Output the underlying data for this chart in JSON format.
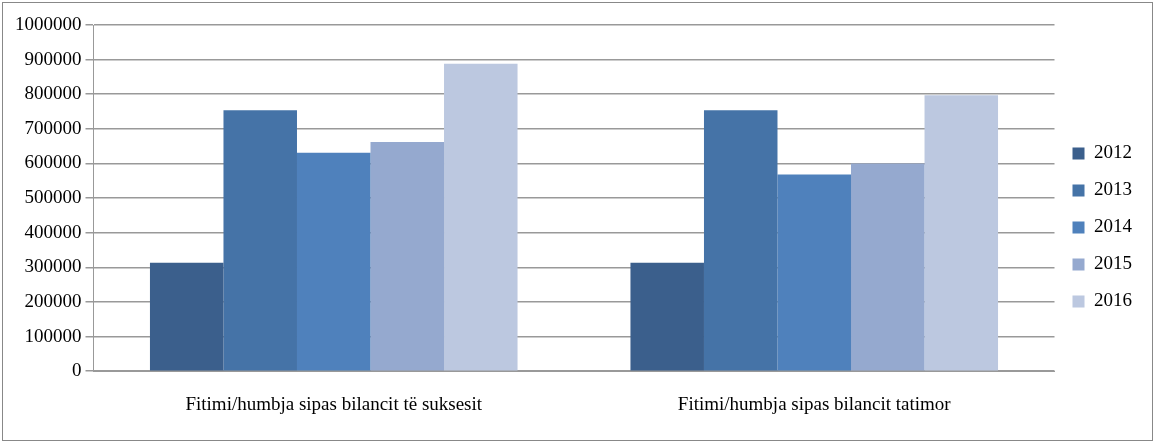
{
  "chart_data": {
    "type": "bar",
    "categories": [
      "Fitimi/humbja sipas bilancit të suksesit",
      "Fitimi/humbja sipas bilancit tatimor"
    ],
    "series": [
      {
        "name": "2012",
        "color": "#3b5f8c",
        "values": [
          313000,
          313000
        ]
      },
      {
        "name": "2013",
        "color": "#4573a7",
        "values": [
          754000,
          754000
        ]
      },
      {
        "name": "2014",
        "color": "#4f81bc",
        "values": [
          631000,
          568000
        ]
      },
      {
        "name": "2015",
        "color": "#95a9cf",
        "values": [
          662000,
          600000
        ]
      },
      {
        "name": "2016",
        "color": "#bcc8e0",
        "values": [
          888000,
          797000
        ]
      }
    ],
    "ylim": [
      0,
      1000000
    ],
    "yticks": [
      0,
      100000,
      200000,
      300000,
      400000,
      500000,
      600000,
      700000,
      800000,
      900000,
      1000000
    ],
    "grid": "y",
    "legend": "right"
  }
}
